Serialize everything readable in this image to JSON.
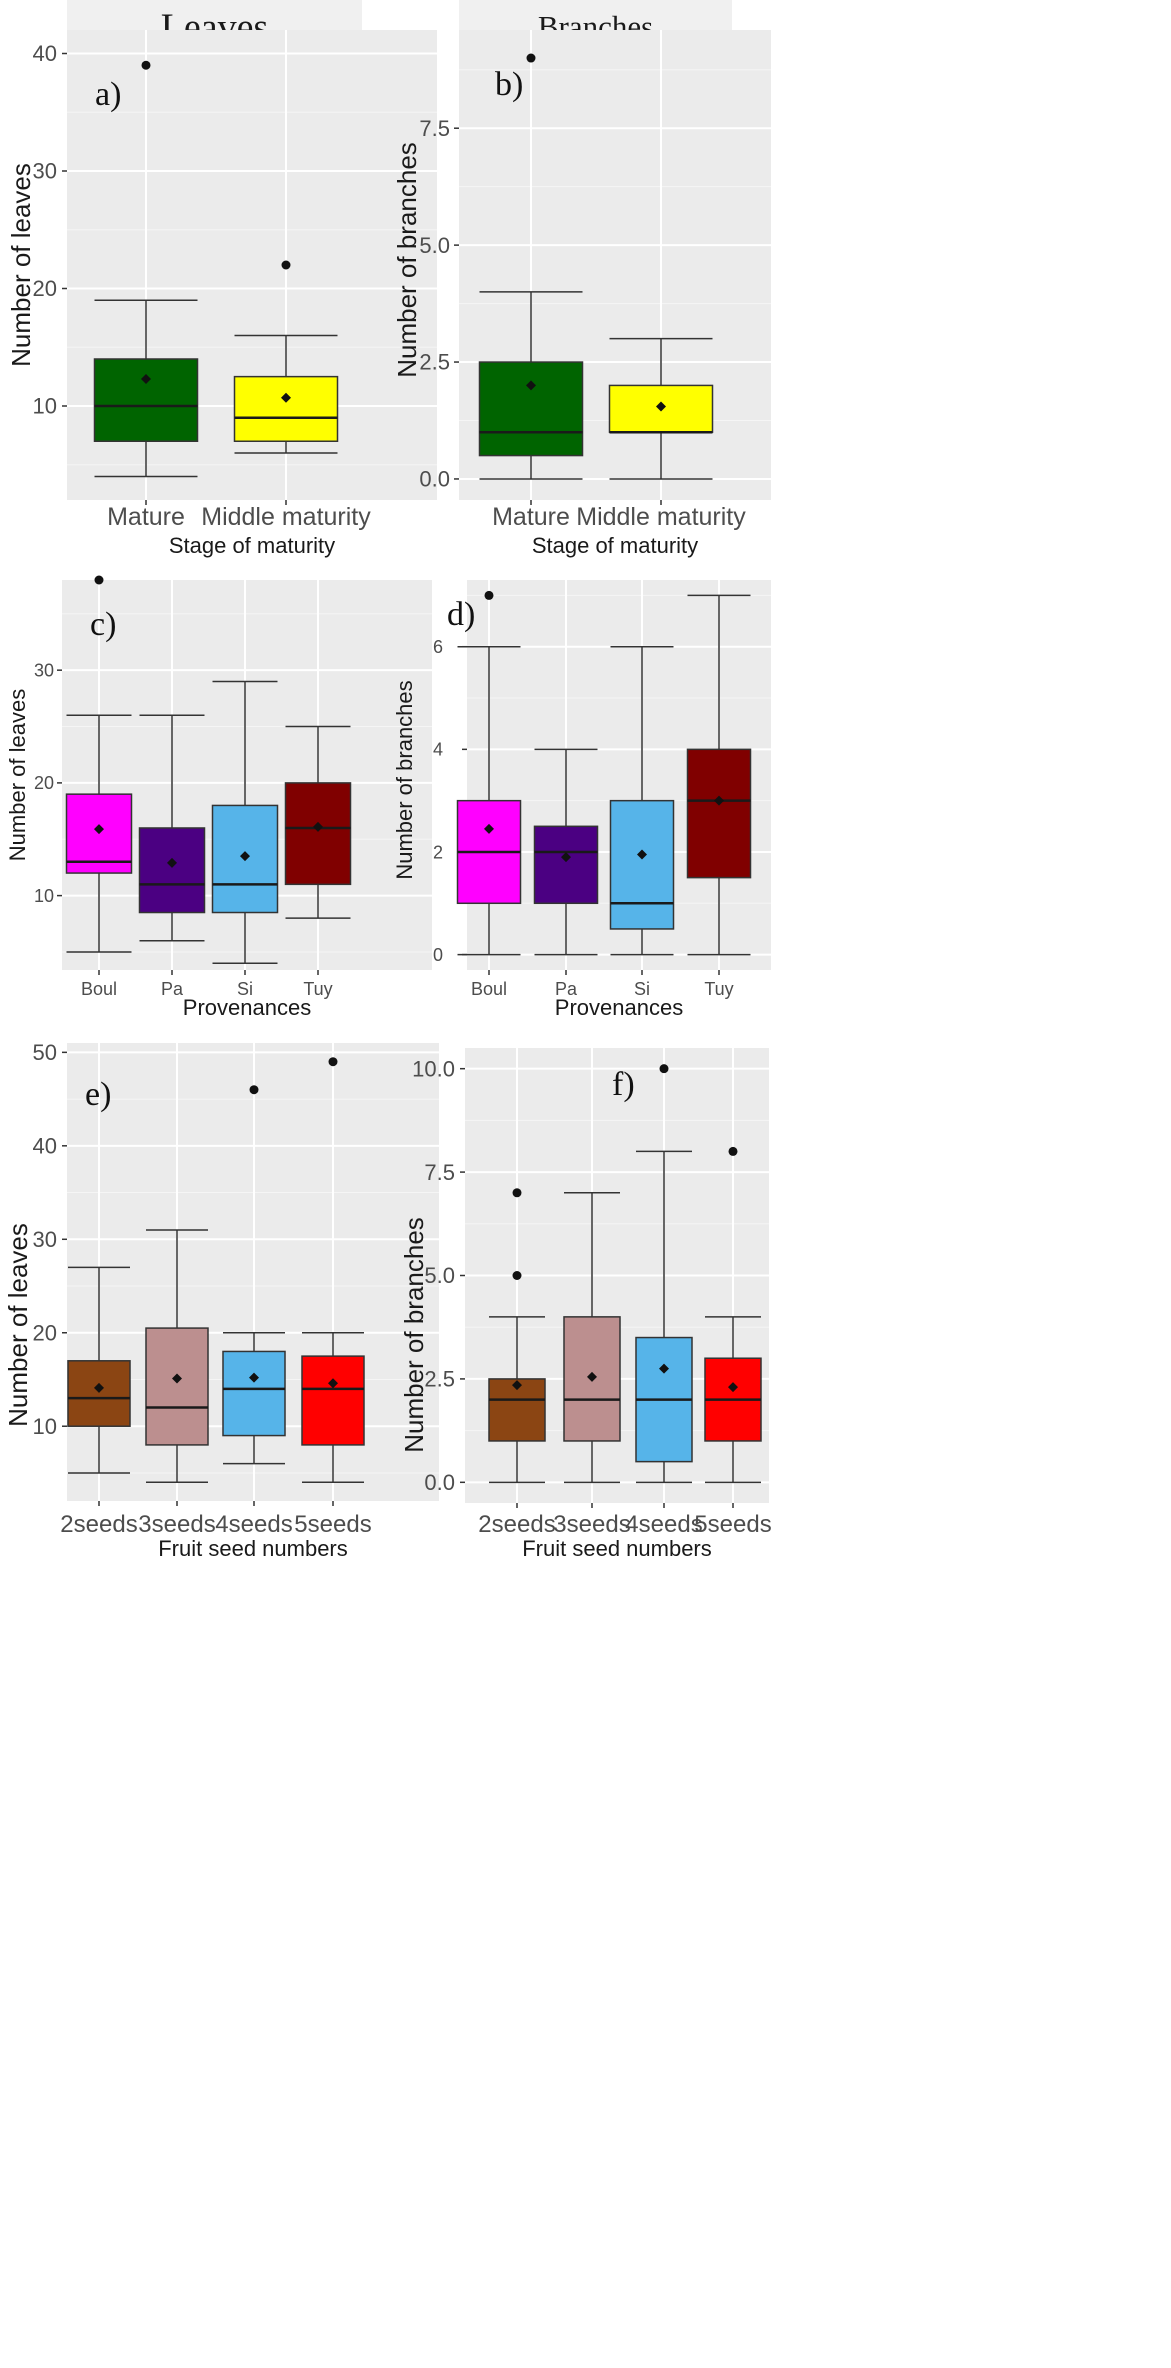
{
  "chart_data": [
    {
      "id": "a",
      "type": "boxplot",
      "strip": "Leaves",
      "panel_label": "a)",
      "xlabel": "Stage of maturity",
      "ylabel": "Number of leaves",
      "ylim": [
        2,
        42
      ],
      "yticks": [
        10,
        20,
        30,
        40
      ],
      "ytick_labels": [
        "10",
        "20",
        "30",
        "40"
      ],
      "categories": [
        "Mature",
        "Middle maturity"
      ],
      "boxes": [
        {
          "color": "#006400",
          "min": 4,
          "q1": 7,
          "median": 10,
          "q3": 14,
          "max": 19,
          "mean": 12.3,
          "outliers": [
            39
          ]
        },
        {
          "color": "#ffff00",
          "min": 6,
          "q1": 7,
          "median": 9,
          "q3": 12.5,
          "max": 16,
          "mean": 10.7,
          "outliers": [
            22
          ]
        }
      ]
    },
    {
      "id": "b",
      "type": "boxplot",
      "strip": "Branches",
      "panel_label": "b)",
      "xlabel": "Stage of maturity",
      "ylabel": "Number of branches",
      "ylim": [
        -0.45,
        9.6
      ],
      "yticks": [
        0,
        2.5,
        5,
        7.5
      ],
      "ytick_labels": [
        "0.0",
        "2.5",
        "5.0",
        "7.5"
      ],
      "categories": [
        "Mature",
        "Middle maturity"
      ],
      "boxes": [
        {
          "color": "#006400",
          "min": 0,
          "q1": 0.5,
          "median": 1,
          "q3": 2.5,
          "max": 4,
          "mean": 2.0,
          "outliers": [
            9
          ]
        },
        {
          "color": "#ffff00",
          "min": 0,
          "q1": 1,
          "median": 1,
          "q3": 2,
          "max": 3,
          "mean": 1.55,
          "outliers": []
        }
      ]
    },
    {
      "id": "c",
      "type": "boxplot",
      "panel_label": "c)",
      "xlabel": "Provenances",
      "ylabel": "Number of leaves",
      "ylim": [
        3.4,
        38
      ],
      "yticks": [
        10,
        20,
        30
      ],
      "ytick_labels": [
        "10",
        "20",
        "30"
      ],
      "categories": [
        "Boul",
        "Pa",
        "Si",
        "Tuy"
      ],
      "boxes": [
        {
          "color": "#ff00ff",
          "min": 5,
          "q1": 12,
          "median": 13,
          "q3": 19,
          "max": 26,
          "mean": 15.9,
          "outliers": [
            38
          ]
        },
        {
          "color": "#4b0082",
          "min": 6,
          "q1": 8.5,
          "median": 11,
          "q3": 16,
          "max": 26,
          "mean": 12.9,
          "outliers": []
        },
        {
          "color": "#56b4e9",
          "min": 4,
          "q1": 8.5,
          "median": 11,
          "q3": 18,
          "max": 29,
          "mean": 13.5,
          "outliers": []
        },
        {
          "color": "#800000",
          "min": 8,
          "q1": 11,
          "median": 16,
          "q3": 20,
          "max": 25,
          "mean": 16.1,
          "outliers": []
        }
      ]
    },
    {
      "id": "d",
      "type": "boxplot",
      "panel_label": "d)",
      "xlabel": "Provenances",
      "ylabel": "Number of branches",
      "ylim": [
        -0.3,
        7.3
      ],
      "yticks": [
        0,
        2,
        4,
        6
      ],
      "ytick_labels": [
        "0",
        "2",
        "4",
        "6"
      ],
      "categories": [
        "Boul",
        "Pa",
        "Si",
        "Tuy"
      ],
      "boxes": [
        {
          "color": "#ff00ff",
          "min": 0,
          "q1": 1,
          "median": 2,
          "q3": 3,
          "max": 6,
          "mean": 2.45,
          "outliers": [
            7
          ]
        },
        {
          "color": "#4b0082",
          "min": 0,
          "q1": 1,
          "median": 2,
          "q3": 2.5,
          "max": 4,
          "mean": 1.9,
          "outliers": []
        },
        {
          "color": "#56b4e9",
          "min": 0,
          "q1": 0.5,
          "median": 1,
          "q3": 3,
          "max": 6,
          "mean": 1.95,
          "outliers": []
        },
        {
          "color": "#800000",
          "min": 0,
          "q1": 1.5,
          "median": 3,
          "q3": 4,
          "max": 7,
          "mean": 3.0,
          "outliers": []
        }
      ]
    },
    {
      "id": "e",
      "type": "boxplot",
      "panel_label": "e)",
      "xlabel": "Fruit seed numbers",
      "ylabel": "Number of leaves",
      "ylim": [
        2,
        51
      ],
      "yticks": [
        10,
        20,
        30,
        40,
        50
      ],
      "ytick_labels": [
        "10",
        "20",
        "30",
        "40",
        "50"
      ],
      "categories": [
        "2seeds",
        "3seeds",
        "4seeds",
        "5seeds"
      ],
      "boxes": [
        {
          "color": "#8b4513",
          "min": 5,
          "q1": 10,
          "median": 13,
          "q3": 17,
          "max": 27,
          "mean": 14.1,
          "outliers": []
        },
        {
          "color": "#bc8f8f",
          "min": 4,
          "q1": 8,
          "median": 12,
          "q3": 20.5,
          "max": 31,
          "mean": 15.1,
          "outliers": []
        },
        {
          "color": "#56b4e9",
          "min": 6,
          "q1": 9,
          "median": 14,
          "q3": 18,
          "max": 20,
          "mean": 15.2,
          "outliers": [
            46
          ]
        },
        {
          "color": "#ff0000",
          "min": 4,
          "q1": 8,
          "median": 14,
          "q3": 17.5,
          "max": 20,
          "mean": 14.6,
          "outliers": [
            49
          ]
        }
      ]
    },
    {
      "id": "f",
      "type": "boxplot",
      "panel_label": "f)",
      "xlabel": "Fruit seed numbers",
      "ylabel": "Number of branches",
      "ylim": [
        -0.5,
        10.5
      ],
      "yticks": [
        0,
        2.5,
        5,
        7.5,
        10
      ],
      "ytick_labels": [
        "0.0",
        "2.5",
        "5.0",
        "7.5",
        "10.0"
      ],
      "categories": [
        "2seeds",
        "3seeds",
        "4seeds",
        "5seeds"
      ],
      "boxes": [
        {
          "color": "#8b4513",
          "min": 0,
          "q1": 1,
          "median": 2,
          "q3": 2.5,
          "max": 4,
          "mean": 2.35,
          "outliers": [
            5,
            7
          ]
        },
        {
          "color": "#bc8f8f",
          "min": 0,
          "q1": 1,
          "median": 2,
          "q3": 4,
          "max": 7,
          "mean": 2.55,
          "outliers": []
        },
        {
          "color": "#56b4e9",
          "min": 0,
          "q1": 0.5,
          "median": 2,
          "q3": 3.5,
          "max": 8,
          "mean": 2.75,
          "outliers": [
            10
          ]
        },
        {
          "color": "#ff0000",
          "min": 0,
          "q1": 1,
          "median": 2,
          "q3": 3,
          "max": 4,
          "mean": 2.3,
          "outliers": [
            8
          ]
        }
      ]
    }
  ]
}
